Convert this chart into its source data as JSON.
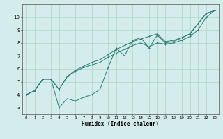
{
  "xlabel": "Humidex (Indice chaleur)",
  "x_values": [
    0,
    1,
    2,
    3,
    4,
    5,
    6,
    7,
    8,
    9,
    10,
    11,
    12,
    13,
    14,
    15,
    16,
    17,
    18,
    19,
    20,
    21,
    22,
    23
  ],
  "line_jagged": [
    4.0,
    4.3,
    5.2,
    5.2,
    3.0,
    3.7,
    3.5,
    3.8,
    4.0,
    4.4,
    6.1,
    7.6,
    7.0,
    8.2,
    8.4,
    7.6,
    8.6,
    8.0,
    8.1,
    8.4,
    8.7,
    9.5,
    10.3,
    10.5
  ],
  "line_mid": [
    4.0,
    4.3,
    5.2,
    5.2,
    4.4,
    5.4,
    5.8,
    6.1,
    6.3,
    6.5,
    6.9,
    7.2,
    7.5,
    7.8,
    8.0,
    7.7,
    8.0,
    7.9,
    8.0,
    8.2,
    8.5,
    9.0,
    10.0,
    10.5
  ],
  "line_top": [
    4.0,
    4.3,
    5.2,
    5.2,
    4.4,
    5.4,
    5.9,
    6.2,
    6.5,
    6.7,
    7.1,
    7.5,
    7.8,
    8.1,
    8.3,
    8.5,
    8.7,
    8.1,
    8.2,
    8.4,
    8.7,
    9.5,
    10.3,
    10.5
  ],
  "line_color": "#2d7d6e",
  "bg_color": "#d4eceb",
  "grid_color": "#aed4ce",
  "ylim": [
    2.5,
    11.0
  ],
  "xlim": [
    -0.5,
    23.5
  ],
  "yticks": [
    3,
    4,
    5,
    6,
    7,
    8,
    9,
    10
  ],
  "xticks": [
    0,
    1,
    2,
    3,
    4,
    5,
    6,
    7,
    8,
    9,
    10,
    11,
    12,
    13,
    14,
    15,
    16,
    17,
    18,
    19,
    20,
    21,
    22,
    23
  ]
}
